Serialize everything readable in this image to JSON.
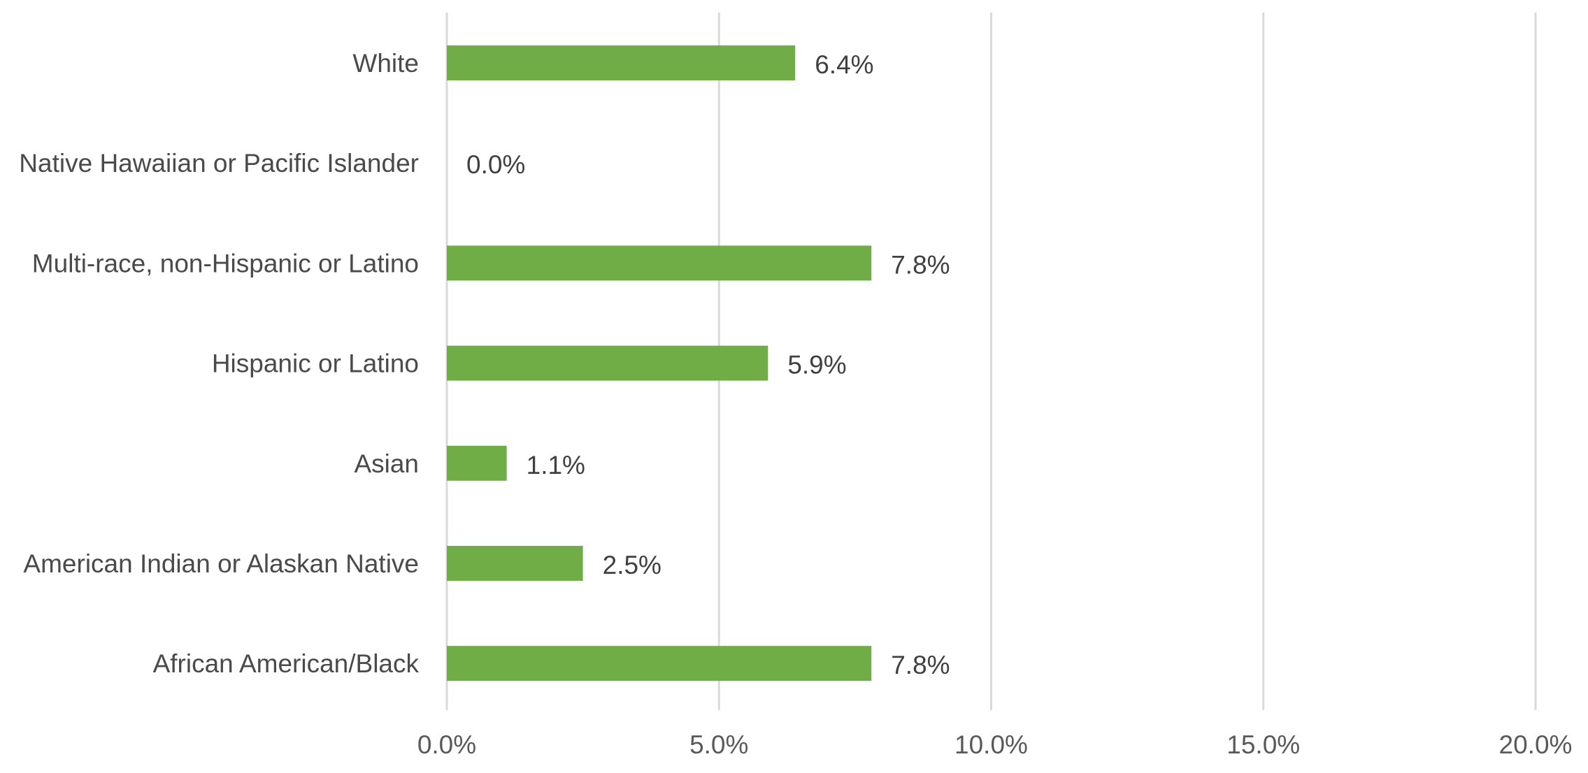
{
  "chart_data": {
    "type": "bar",
    "orientation": "horizontal",
    "title": "",
    "xlabel": "",
    "ylabel": "",
    "categories": [
      "White",
      "Native Hawaiian or Pacific Islander",
      "Multi-race, non-Hispanic or Latino",
      "Hispanic or Latino",
      "Asian",
      "American Indian or Alaskan Native",
      "African American/Black"
    ],
    "values": [
      6.4,
      0.0,
      7.8,
      5.9,
      1.1,
      2.5,
      7.8
    ],
    "data_labels": [
      "6.4%",
      "0.0%",
      "7.8%",
      "5.9%",
      "1.1%",
      "2.5%",
      "7.8%"
    ],
    "xlim": [
      0,
      20
    ],
    "x_ticks": [
      0,
      5,
      10,
      15,
      20
    ],
    "x_tick_labels": [
      "0.0%",
      "5.0%",
      "10.0%",
      "15.0%",
      "20.0%"
    ],
    "grid": "vertical",
    "legend": "none",
    "bar_color": "#70ad47",
    "grid_color": "#d9d9d9"
  }
}
